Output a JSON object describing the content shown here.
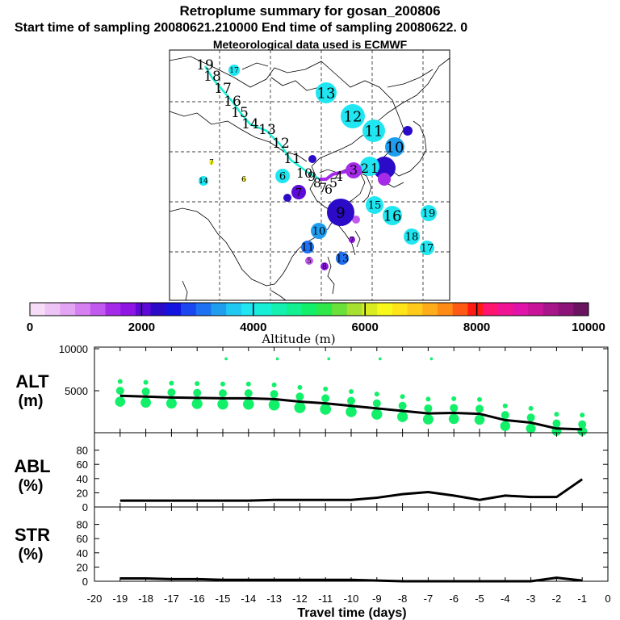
{
  "header": {
    "title": "Retroplume summary for gosan_200806",
    "sampling": "Start time of sampling 20080621.210000     End time of sampling 20080622.     0",
    "met": "Meteorological data used is ECMWF"
  },
  "colorbar": {
    "colors": [
      "#f6dcf6",
      "#edc4f5",
      "#e3a5f3",
      "#d57ff0",
      "#c259ee",
      "#a62be9",
      "#8f15e3",
      "#5d0ad8",
      "#2b0ac8",
      "#1414e0",
      "#1c46f0",
      "#1e72f2",
      "#1f9ef0",
      "#1fc8f0",
      "#1fe6f0",
      "#15f0d6",
      "#14f0b0",
      "#12f090",
      "#12f06a",
      "#2ee84a",
      "#6ae03a",
      "#a8e030",
      "#d8ec20",
      "#f8f81a",
      "#ffe41a",
      "#ffca1a",
      "#ffac1a",
      "#ff8a14",
      "#ff5a14",
      "#ff1a14",
      "#ff1470",
      "#f01494",
      "#e014a8",
      "#c81498",
      "#a8148a",
      "#8c1478",
      "#6a1460"
    ],
    "ticks": [
      "0",
      "2000",
      "4000",
      "6000",
      "8000",
      "10000"
    ],
    "label": "Altitude (m)"
  },
  "map": {
    "trajectory_labels": [
      "19",
      "18",
      "17",
      "16",
      "15",
      "14",
      "13",
      "12",
      "11",
      "10",
      "9",
      "8",
      "7",
      "6",
      "5",
      "4",
      "3",
      "2",
      "1"
    ],
    "markers": [
      {
        "label": "17",
        "color": "#1fe6f0",
        "size": 7
      },
      {
        "label": "13",
        "color": "#1fe6f0",
        "size": 13
      },
      {
        "label": "12",
        "color": "#1fe6f0",
        "size": 15
      },
      {
        "label": "11",
        "color": "#1fe6f0",
        "size": 14
      },
      {
        "label": "10",
        "color": "#1f9ef0",
        "size": 12
      },
      {
        "label": "9",
        "color": "#2b0ac8",
        "size": 17
      },
      {
        "label": "15",
        "color": "#1fe6f0",
        "size": 11
      },
      {
        "label": "16",
        "color": "#1fe6f0",
        "size": 12
      },
      {
        "label": "19",
        "color": "#1fe6f0",
        "size": 10
      },
      {
        "label": "18",
        "color": "#1fe6f0",
        "size": 10
      },
      {
        "label": "17",
        "color": "#1fe6f0",
        "size": 9
      },
      {
        "label": "10",
        "color": "#1f9ef0",
        "size": 10
      },
      {
        "label": "11",
        "color": "#1e72f2",
        "size": 8
      },
      {
        "label": "13",
        "color": "#1e72f2",
        "size": 8
      },
      {
        "label": "5",
        "color": "#c259ee",
        "size": 5
      },
      {
        "label": "8",
        "color": "#8f15e3",
        "size": 5
      },
      {
        "label": "7",
        "color": "#8f15e3",
        "size": 4
      },
      {
        "label": "6",
        "color": "#1fe6f0",
        "size": 9
      },
      {
        "label": "7",
        "color": "#5d0ad8",
        "size": 9
      },
      {
        "label": "7",
        "color": "#f8f81a",
        "size": 3
      },
      {
        "label": "6",
        "color": "#f8f81a",
        "size": 3
      },
      {
        "label": "14",
        "color": "#1fe6f0",
        "size": 6
      }
    ]
  },
  "chart_data": [
    {
      "type": "line",
      "panel": "ALT",
      "ylabel": "ALT",
      "yunit": "(m)",
      "ylim": [
        0,
        10000
      ],
      "yticks": [
        "10000",
        "5000"
      ],
      "x": [
        -19,
        -18,
        -17,
        -16,
        -15,
        -14,
        -13,
        -12,
        -11,
        -10,
        -9,
        -8,
        -7,
        -6,
        -5,
        -4,
        -3,
        -2,
        -1
      ],
      "values": [
        4400,
        4300,
        4200,
        4150,
        4100,
        4100,
        4000,
        3700,
        3500,
        3200,
        2900,
        2600,
        2300,
        2350,
        2250,
        1500,
        1200,
        500,
        400
      ]
    },
    {
      "type": "line",
      "panel": "ABL",
      "ylabel": "ABL",
      "yunit": "(%)",
      "ylim": [
        0,
        100
      ],
      "yticks": [
        "80",
        "60",
        "40",
        "20",
        "0"
      ],
      "x": [
        -19,
        -18,
        -17,
        -16,
        -15,
        -14,
        -13,
        -12,
        -11,
        -10,
        -9,
        -8,
        -7,
        -6,
        -5,
        -4,
        -3,
        -2,
        -1
      ],
      "values": [
        9,
        9,
        9,
        9,
        9,
        9,
        10,
        10,
        10,
        10,
        13,
        18,
        21,
        16,
        10,
        16,
        14,
        14,
        39
      ]
    },
    {
      "type": "line",
      "panel": "STR",
      "ylabel": "STR",
      "yunit": "(%)",
      "ylim": [
        0,
        100
      ],
      "yticks": [
        "80",
        "60",
        "40",
        "20",
        "0"
      ],
      "x": [
        -19,
        -18,
        -17,
        -16,
        -15,
        -14,
        -13,
        -12,
        -11,
        -10,
        -9,
        -8,
        -7,
        -6,
        -5,
        -4,
        -3,
        -2,
        -1
      ],
      "values": [
        4,
        4,
        3,
        3,
        2,
        2,
        2,
        2,
        2,
        2,
        1,
        0,
        0,
        0,
        0,
        0,
        0,
        5,
        1
      ]
    }
  ],
  "xaxis": {
    "ticks": [
      "-20",
      "-19",
      "-18",
      "-17",
      "-16",
      "-15",
      "-14",
      "-13",
      "-12",
      "-11",
      "-10",
      "-9",
      "-8",
      "-7",
      "-6",
      "-5",
      "-4",
      "-3",
      "-2",
      "-1",
      "0"
    ],
    "label": "Travel time (days)"
  }
}
